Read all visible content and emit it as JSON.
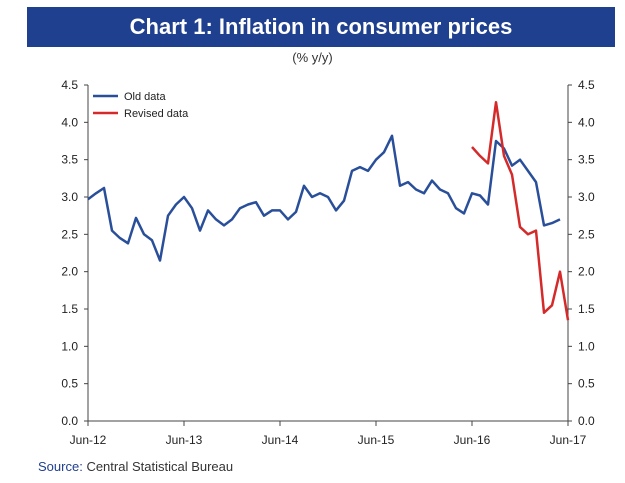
{
  "chart_data": {
    "type": "line",
    "title": "Chart 1: Inflation in consumer prices",
    "subtitle": "(% y/y)",
    "source_label": "Source:",
    "source_text": "Central Statistical Bureau",
    "ylim": [
      0,
      4.5
    ],
    "yticks": [
      "0.0",
      "0.5",
      "1.0",
      "1.5",
      "2.0",
      "2.5",
      "3.0",
      "3.5",
      "4.0",
      "4.5"
    ],
    "xticks": [
      "Jun-12",
      "Jun-13",
      "Jun-14",
      "Jun-15",
      "Jun-16",
      "Jun-17"
    ],
    "x_start": "Jun-12",
    "x_end": "Jun-17",
    "grid": false,
    "legend_position": "top-left",
    "series": [
      {
        "name": "Old data",
        "color": "#2a4f9a",
        "values": [
          2.97,
          3.05,
          3.12,
          2.55,
          2.45,
          2.38,
          2.72,
          2.5,
          2.42,
          2.15,
          2.75,
          2.9,
          3.0,
          2.85,
          2.55,
          2.82,
          2.7,
          2.62,
          2.7,
          2.85,
          2.9,
          2.93,
          2.75,
          2.82,
          2.82,
          2.7,
          2.8,
          3.15,
          3.0,
          3.05,
          3.0,
          2.82,
          2.95,
          3.35,
          3.4,
          3.35,
          3.5,
          3.6,
          3.82,
          3.15,
          3.2,
          3.1,
          3.05,
          3.22,
          3.1,
          3.05,
          2.85,
          2.78,
          3.05,
          3.02,
          2.9,
          3.75,
          3.65,
          3.42,
          3.5,
          3.35,
          3.2,
          2.62,
          2.65,
          2.7
        ]
      },
      {
        "name": "Revised data",
        "color": "#d42a2a",
        "start_index": 48,
        "values": [
          3.67,
          3.55,
          3.45,
          4.27,
          3.55,
          3.3,
          2.6,
          2.5,
          2.55,
          1.45,
          1.55,
          2.0,
          1.35
        ]
      }
    ]
  }
}
